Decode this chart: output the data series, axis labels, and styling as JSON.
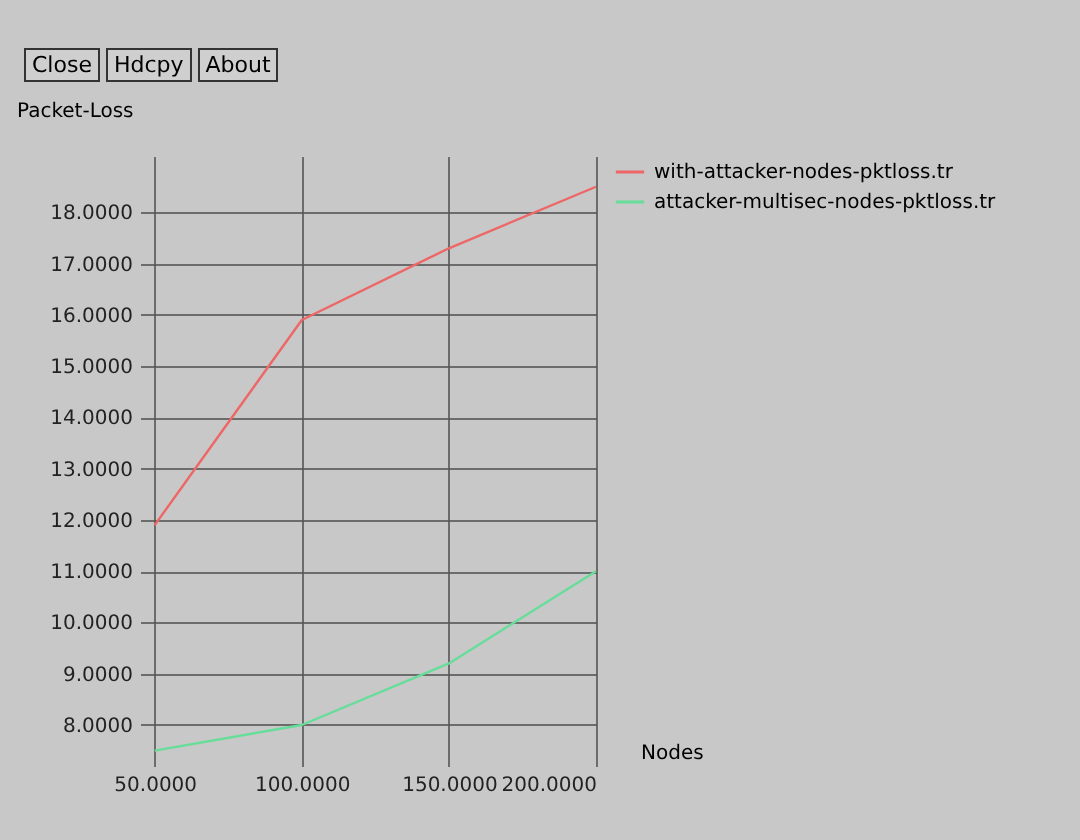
{
  "chart_data": {
    "type": "line",
    "xlabel": "Nodes",
    "ylabel": "Packet-Loss",
    "annotations": [
      "Close",
      "Hdcpy",
      "About"
    ],
    "x": [
      50,
      100,
      150,
      200
    ],
    "series": [
      {
        "name": "with-attacker-nodes-pktloss.tr",
        "color": "#ee6666",
        "values": [
          11.9,
          15.9,
          17.3,
          18.5
        ]
      },
      {
        "name": "attacker-multisec-nodes-pktloss.tr",
        "color": "#66dd99",
        "values": [
          7.5,
          8.0,
          9.2,
          11.0
        ]
      }
    ],
    "xlim": [
      45,
      200
    ],
    "ylim": [
      7.2,
      19.1
    ],
    "xticks": [
      {
        "value": 50,
        "label": "50.0000"
      },
      {
        "value": 100,
        "label": "100.0000"
      },
      {
        "value": 150,
        "label": "150.0000"
      },
      {
        "value": 200,
        "label": "200.0000"
      }
    ],
    "yticks": [
      {
        "value": 8,
        "label": "8.0000"
      },
      {
        "value": 9,
        "label": "9.0000"
      },
      {
        "value": 10,
        "label": "10.0000"
      },
      {
        "value": 11,
        "label": "11.0000"
      },
      {
        "value": 12,
        "label": "12.0000"
      },
      {
        "value": 13,
        "label": "13.0000"
      },
      {
        "value": 14,
        "label": "14.0000"
      },
      {
        "value": 15,
        "label": "15.0000"
      },
      {
        "value": 16,
        "label": "16.0000"
      },
      {
        "value": 17,
        "label": "17.0000"
      },
      {
        "value": 18,
        "label": "18.0000"
      }
    ],
    "grid": true,
    "legend": "right",
    "marker": "none",
    "line_style": "solid"
  }
}
